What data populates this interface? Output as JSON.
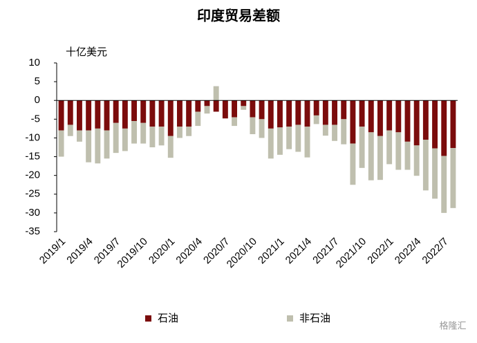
{
  "chart_data": {
    "type": "stacked_bar",
    "title": "印度贸易差额",
    "y_axis_label": "十亿美元",
    "watermark": "格隆汇",
    "categories": [
      "2019/1",
      null,
      null,
      "2019/4",
      null,
      null,
      "2019/7",
      null,
      null,
      "2019/10",
      null,
      null,
      "2020/1",
      null,
      null,
      "2020/4",
      null,
      null,
      "2020/7",
      null,
      null,
      "2020/10",
      null,
      null,
      "2021/1",
      null,
      null,
      "2021/4",
      null,
      null,
      "2021/7",
      null,
      null,
      "2021/10",
      null,
      null,
      "2022/1",
      null,
      null,
      "2022/4",
      null,
      null,
      "2022/7",
      null
    ],
    "series": [
      {
        "name": "石油",
        "color": "#7b0c0c",
        "values": [
          -8,
          -6.5,
          -8,
          -8,
          -7.5,
          -8,
          -6,
          -7.5,
          -5.5,
          -6,
          -7,
          -7,
          -9.5,
          -7,
          -7,
          -3,
          -1.5,
          -3,
          -4.8,
          -4.5,
          -1.5,
          -4.5,
          -5,
          -7.5,
          -7.2,
          -7,
          -6.5,
          -7,
          -4,
          -6.5,
          -6.5,
          -5,
          -11.5,
          -7,
          -8.5,
          -9.5,
          -8,
          -8.5,
          -11,
          -12,
          -10.5,
          -12.8,
          -14.8,
          -12.7
        ]
      },
      {
        "name": "非石油",
        "color": "#bfbfae",
        "values": [
          -7,
          -3,
          -3,
          -8.5,
          -9.3,
          -7.5,
          -8,
          -6,
          -6,
          -5.5,
          -5.5,
          -5,
          -5.8,
          -3,
          -2.5,
          -3.8,
          -2,
          3.8,
          0,
          -2.3,
          -1,
          -4.5,
          -5,
          -8,
          -7.3,
          -6,
          -7.2,
          -8.2,
          -2.3,
          -2.9,
          -4.3,
          -6.7,
          -11,
          -11,
          -12.8,
          -11.7,
          -9,
          -10,
          -7.5,
          -8.1,
          -13.5,
          -13.4,
          -15.2,
          -16
        ]
      }
    ],
    "ylim": [
      -35,
      10
    ],
    "yticks": [
      -35,
      -30,
      -25,
      -20,
      -15,
      -10,
      -5,
      0,
      5,
      10
    ],
    "legend": "bottom"
  }
}
